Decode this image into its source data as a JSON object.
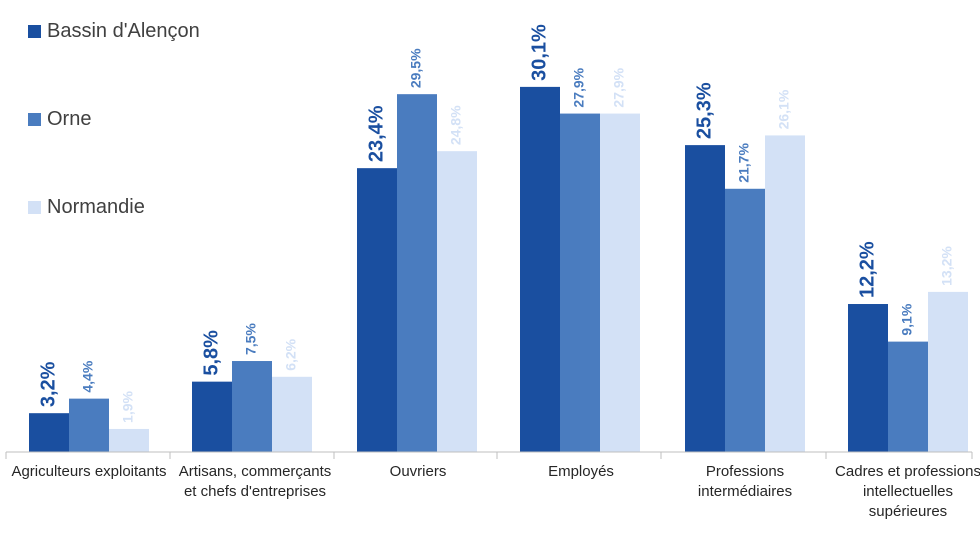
{
  "chart_data": {
    "type": "bar",
    "categories": [
      "Agriculteurs exploitants",
      "Artisans, commerçants et chefs d'entreprises",
      "Ouvriers",
      "Employés",
      "Professions intermédiaires",
      "Cadres et professions intellectuelles supérieures"
    ],
    "series": [
      {
        "name": "Bassin d'Alençon",
        "color": "#1a4fa0",
        "values": [
          3.2,
          5.8,
          23.4,
          30.1,
          25.3,
          12.2
        ],
        "labels": [
          "3,2%",
          "5,8%",
          "23,4%",
          "30,1%",
          "25,3%",
          "12,2%"
        ]
      },
      {
        "name": "Orne",
        "color": "#4a7cbf",
        "values": [
          4.4,
          7.5,
          29.5,
          27.9,
          21.7,
          9.1
        ],
        "labels": [
          "4,4%",
          "7,5%",
          "29,5%",
          "27,9%",
          "21,7%",
          "9,1%"
        ]
      },
      {
        "name": "Normandie",
        "color": "#d3e1f6",
        "values": [
          1.9,
          6.2,
          24.8,
          27.9,
          26.1,
          13.2
        ],
        "labels": [
          "1,9%",
          "6,2%",
          "24,8%",
          "27,9%",
          "26,1%",
          "13,2%"
        ]
      }
    ],
    "ylim": [
      0,
      30.1
    ],
    "grid": false,
    "legend_position": "top-left",
    "title": "",
    "xlabel": "",
    "ylabel": ""
  }
}
